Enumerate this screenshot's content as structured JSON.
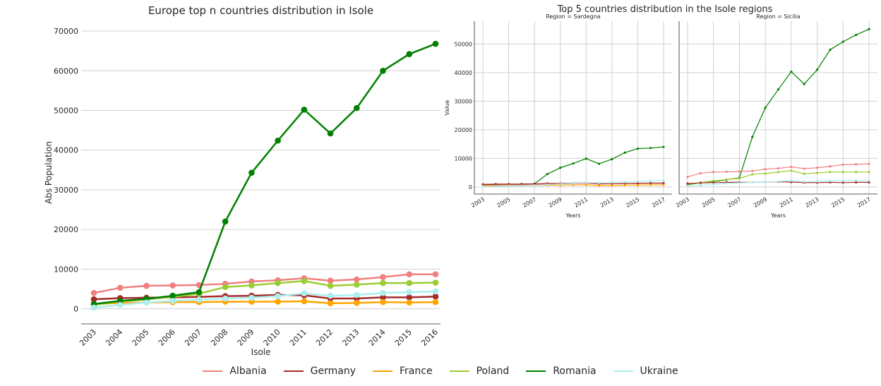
{
  "chart_data": [
    {
      "type": "line",
      "title": "Europe top n countries distribution in Isole",
      "xlabel": "Isole",
      "ylabel": "Abs Population",
      "x": [
        "2003",
        "2004",
        "2005",
        "2006",
        "2007",
        "2008",
        "2009",
        "2010",
        "2011",
        "2012",
        "2013",
        "2014",
        "2015",
        "2016"
      ],
      "ylim": [
        -3800,
        72500
      ],
      "yticks": [
        0,
        10000,
        20000,
        30000,
        40000,
        50000,
        60000,
        70000
      ],
      "grid": true,
      "series": [
        {
          "name": "Albania",
          "color": "#f08080",
          "values": [
            4000,
            5300,
            5800,
            5900,
            6000,
            6300,
            6900,
            7200,
            7700,
            7100,
            7400,
            8000,
            8700,
            8700
          ]
        },
        {
          "name": "Germany",
          "color": "#a52a2a",
          "values": [
            2400,
            2700,
            2800,
            2900,
            3000,
            3200,
            3300,
            3500,
            3400,
            2600,
            2600,
            2900,
            2900,
            3100
          ]
        },
        {
          "name": "France",
          "color": "#ffa500",
          "values": [
            1200,
            1500,
            1600,
            1700,
            1700,
            1800,
            1800,
            1800,
            1900,
            1400,
            1500,
            1700,
            1600,
            1700
          ]
        },
        {
          "name": "Poland",
          "color": "#9acd32",
          "values": [
            1000,
            1900,
            2400,
            3000,
            3800,
            5500,
            5900,
            6500,
            7000,
            5800,
            6100,
            6500,
            6500,
            6600
          ]
        },
        {
          "name": "Romania",
          "color": "#008000",
          "values": [
            1200,
            2000,
            2500,
            3300,
            4200,
            22000,
            34300,
            42400,
            50200,
            44200,
            50600,
            60000,
            64200,
            66800
          ]
        },
        {
          "name": "Ukraine",
          "color": "#aeeeee",
          "values": [
            300,
            1000,
            1600,
            2000,
            2300,
            2600,
            2800,
            3200,
            3900,
            3300,
            3500,
            4000,
            4200,
            4400
          ]
        }
      ]
    },
    {
      "type": "line",
      "title": "Top 5 countries distribution in the Isole regions",
      "facets": [
        {
          "title": "Region = Sardegna",
          "xlabel": "Years",
          "ylabel": "Value",
          "x": [
            2003,
            2004,
            2005,
            2006,
            2007,
            2008,
            2009,
            2010,
            2011,
            2012,
            2013,
            2014,
            2015,
            2016,
            2017
          ],
          "xticks": [
            2003,
            2005,
            2007,
            2009,
            2011,
            2013,
            2015,
            2017
          ],
          "ylim": [
            -2500,
            58000
          ],
          "yticks": [
            0,
            10000,
            20000,
            30000,
            40000,
            50000
          ],
          "series": [
            {
              "name": "Romania",
              "color": "#008000",
              "values": [
                800,
                900,
                900,
                1000,
                1100,
                4500,
                6700,
                8200,
                9900,
                8100,
                9700,
                12000,
                13400,
                13600,
                14000
              ]
            },
            {
              "name": "Albania",
              "color": "#f08080",
              "values": [
                500,
                600,
                700,
                700,
                800,
                900,
                1000,
                1100,
                1200,
                1000,
                1100,
                1200,
                1300,
                1400,
                1400
              ]
            },
            {
              "name": "Germany",
              "color": "#a52a2a",
              "values": [
                900,
                1000,
                1000,
                1000,
                1100,
                1200,
                1200,
                1300,
                1500,
                1100,
                1100,
                1200,
                1200,
                1300,
                1300
              ]
            },
            {
              "name": "France",
              "color": "#ffa500",
              "values": [
                300,
                300,
                400,
                400,
                500,
                600,
                600,
                700,
                700,
                500,
                500,
                600,
                600,
                700,
                700
              ]
            },
            {
              "name": "Ukraine",
              "color": "#aeeeee",
              "values": [
                100,
                200,
                300,
                400,
                500,
                800,
                1000,
                1200,
                1500,
                1400,
                1600,
                1700,
                1900,
                2100,
                2200
              ]
            }
          ]
        },
        {
          "title": "Region = Sicilia",
          "xlabel": "Years",
          "ylabel": "",
          "x": [
            2003,
            2004,
            2005,
            2006,
            2007,
            2008,
            2009,
            2010,
            2011,
            2012,
            2013,
            2014,
            2015,
            2016,
            2017
          ],
          "xticks": [
            2003,
            2005,
            2007,
            2009,
            2011,
            2013,
            2015,
            2017
          ],
          "ylim": [
            -2500,
            58000
          ],
          "yticks": [
            0,
            10000,
            20000,
            30000,
            40000,
            50000
          ],
          "series": [
            {
              "name": "Romania",
              "color": "#008000",
              "values": [
                700,
                1500,
                1900,
                2500,
                3200,
                17500,
                27700,
                34100,
                40300,
                36000,
                41000,
                48000,
                50800,
                53200,
                55200
              ]
            },
            {
              "name": "Albania",
              "color": "#f08080",
              "values": [
                3500,
                4800,
                5200,
                5300,
                5400,
                5600,
                6200,
                6500,
                7000,
                6400,
                6700,
                7200,
                7800,
                7900,
                8100
              ]
            },
            {
              "name": "Poland",
              "color": "#9acd32",
              "values": [
                900,
                1500,
                2100,
                2600,
                3000,
                4400,
                4700,
                5200,
                5700,
                4600,
                4900,
                5200,
                5200,
                5200,
                5200
              ]
            },
            {
              "name": "Germany",
              "color": "#a52a2a",
              "values": [
                1200,
                1400,
                1500,
                1600,
                1600,
                1600,
                1700,
                1800,
                1700,
                1500,
                1500,
                1600,
                1500,
                1600,
                1600
              ]
            },
            {
              "name": "Ukraine",
              "color": "#aeeeee",
              "values": [
                200,
                600,
                900,
                1200,
                1400,
                1600,
                1700,
                1900,
                2200,
                1800,
                1900,
                2100,
                2200,
                2300,
                2300
              ]
            }
          ]
        }
      ]
    }
  ],
  "legend": {
    "placement": "bottom-center",
    "items": [
      {
        "label": "Albania",
        "color": "#f08080"
      },
      {
        "label": "Germany",
        "color": "#a52a2a"
      },
      {
        "label": "France",
        "color": "#ffa500"
      },
      {
        "label": "Poland",
        "color": "#9acd32"
      },
      {
        "label": "Romania",
        "color": "#008000"
      },
      {
        "label": "Ukraine",
        "color": "#aeeeee"
      }
    ]
  }
}
